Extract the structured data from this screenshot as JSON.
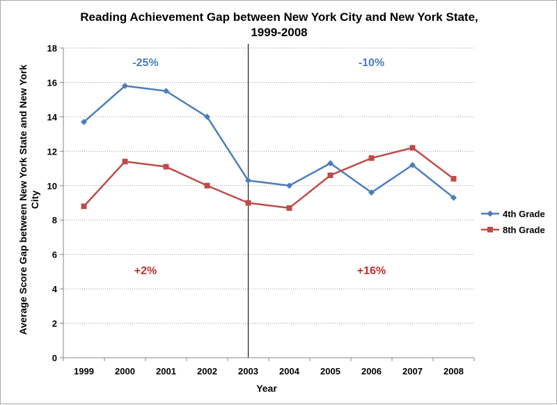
{
  "chart_data": {
    "type": "line",
    "title_lines": [
      "Reading Achievement Gap between New York City and New York State,",
      "1999-2008"
    ],
    "xlabel": "Year",
    "ylabel_lines": [
      "Average Score Gap between New York State and New York",
      "City"
    ],
    "x": [
      "1999",
      "2000",
      "2001",
      "2002",
      "2003",
      "2004",
      "2005",
      "2006",
      "2007",
      "2008"
    ],
    "ylim": [
      0,
      18
    ],
    "yticks": [
      0,
      2,
      4,
      6,
      8,
      10,
      12,
      14,
      16,
      18
    ],
    "grid": true,
    "legend_position": "right",
    "divider_at": "2003",
    "series": [
      {
        "name": "4th Grade",
        "color": "#4a7ebb",
        "marker": "diamond",
        "values": [
          13.7,
          15.8,
          15.5,
          14.0,
          10.3,
          10.0,
          11.3,
          9.6,
          11.2,
          9.3
        ]
      },
      {
        "name": "8th Grade",
        "color": "#be4b48",
        "marker": "square",
        "values": [
          8.8,
          11.4,
          11.1,
          10.0,
          9.0,
          8.7,
          10.6,
          11.6,
          12.2,
          10.4
        ]
      }
    ],
    "annotations": [
      {
        "text": "-25%",
        "x": "2000.5",
        "y": 17.2,
        "color": "#4a7ebb"
      },
      {
        "text": "-10%",
        "x": "2006",
        "y": 17.2,
        "color": "#4a7ebb"
      },
      {
        "text": "+2%",
        "x": "2000.5",
        "y": 5.1,
        "color": "#c0302c"
      },
      {
        "text": "+16%",
        "x": "2006",
        "y": 5.1,
        "color": "#c0302c"
      }
    ]
  }
}
